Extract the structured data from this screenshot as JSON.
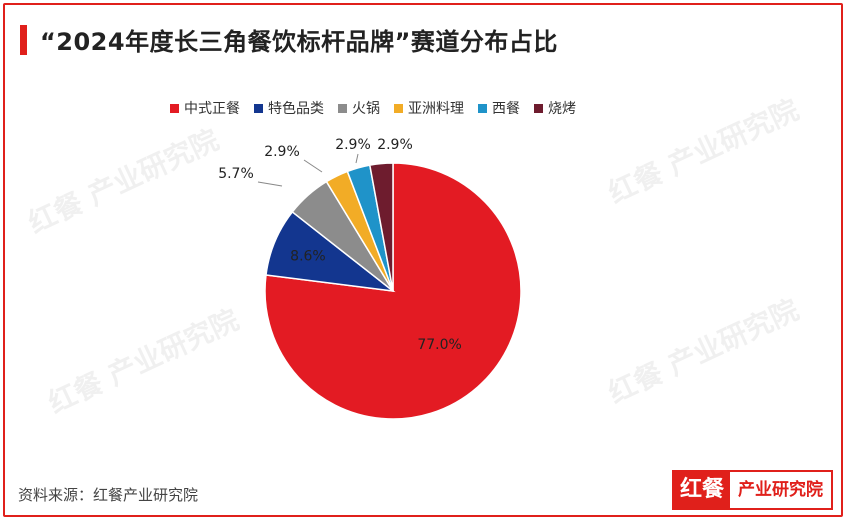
{
  "title": "“2024年度长三角餐饮标杆品牌”赛道分布占比",
  "source": "资料来源：红餐产业研究院",
  "logo": {
    "mark": "红餐",
    "text": "产业研究院"
  },
  "watermark_text": "红餐 产业研究院",
  "chart_data": {
    "type": "pie",
    "title": "“2024年度长三角餐饮标杆品牌”赛道分布占比",
    "categories": [
      "中式正餐",
      "特色品类",
      "火锅",
      "亚洲料理",
      "西餐",
      "烧烤"
    ],
    "values": [
      77.0,
      8.6,
      5.7,
      2.9,
      2.9,
      2.9
    ],
    "labels": [
      "77.0%",
      "8.6%",
      "5.7%",
      "2.9%",
      "2.9%",
      "2.9%"
    ],
    "colors": [
      "#e31b23",
      "#13368f",
      "#8c8c8c",
      "#f2ac26",
      "#1f93c9",
      "#6e1c2e"
    ],
    "legend_position": "top",
    "start": "12 o'clock",
    "direction": "clockwise"
  }
}
